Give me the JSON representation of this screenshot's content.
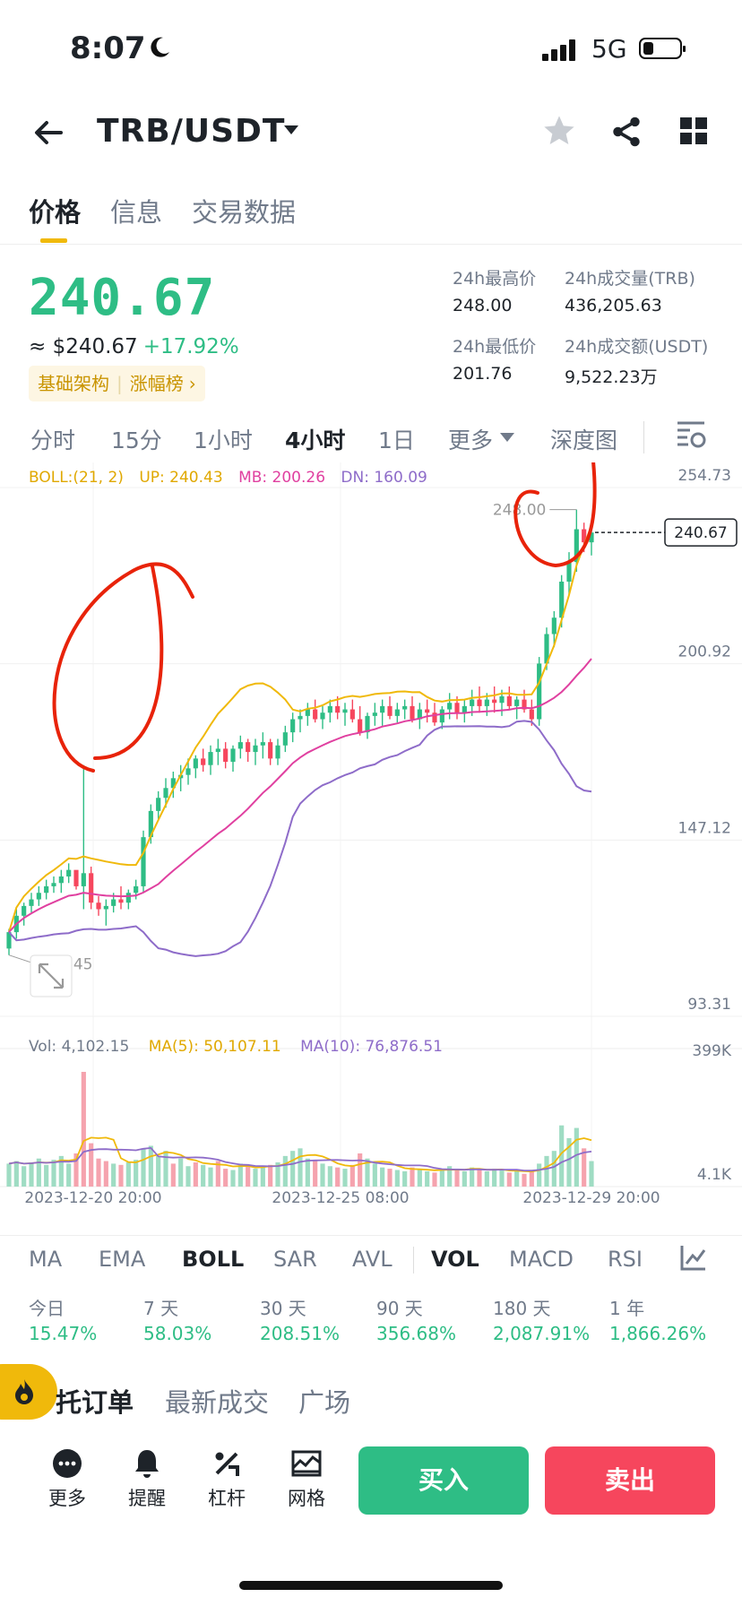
{
  "status": {
    "time": "8:07",
    "network": "5G"
  },
  "header": {
    "pair": "TRB/USDT"
  },
  "tabs": [
    "价格",
    "信息",
    "交易数据"
  ],
  "ticker": {
    "last_price": "240.67",
    "usd_price": "≈ $240.67",
    "change": "+17.92%",
    "tags": [
      "基础架构",
      "涨幅榜"
    ],
    "high_label": "24h最高价",
    "high": "248.00",
    "low_label": "24h最低价",
    "low": "201.76",
    "vol_label": "24h成交量(TRB)",
    "vol": "436,205.63",
    "amount_label": "24h成交额(USDT)",
    "amount": "9,522.23万"
  },
  "intervals": [
    "分时",
    "15分",
    "1小时",
    "4小时",
    "1日",
    "更多",
    "深度图"
  ],
  "overlay": {
    "boll": "BOLL:(21, 2)",
    "up": "UP: 240.43",
    "mb": "MB: 200.26",
    "dn": "DN: 160.09"
  },
  "volume_legend": {
    "vol": "Vol: 4,102.15",
    "ma5": "MA(5): 50,107.11",
    "ma10": "MA(10): 76,876.51"
  },
  "indicator_tabs": [
    "MA",
    "EMA",
    "BOLL",
    "SAR",
    "AVL",
    "VOL",
    "MACD",
    "RSI"
  ],
  "performance": [
    {
      "period": "今日",
      "value": "15.47%"
    },
    {
      "period": "7 天",
      "value": "58.03%"
    },
    {
      "period": "30 天",
      "value": "208.51%"
    },
    {
      "period": "90 天",
      "value": "356.68%"
    },
    {
      "period": "180 天",
      "value": "2,087.91%"
    },
    {
      "period": "1 年",
      "value": "1,866.26%"
    }
  ],
  "bottom_tabs": [
    "托订单",
    "最新成交",
    "广场"
  ],
  "actions": [
    "更多",
    "提醒",
    "杠杆",
    "网格"
  ],
  "buy_label": "买入",
  "sell_label": "卖出",
  "colors": {
    "up": "#2ebd85",
    "down": "#f6465d",
    "accent": "#f0b90b",
    "ma_mid": "#e040a0",
    "boll_dn": "#8e6cc9"
  },
  "chart_data": {
    "type": "candlestick",
    "y_ticks": [
      "254.73",
      "200.92",
      "147.12",
      "93.31"
    ],
    "y_range": [
      93.31,
      254.73
    ],
    "x_labels": [
      "2023-12-20 20:00",
      "2023-12-25 08:00",
      "2023-12-29 20:00"
    ],
    "last_price_label": "240.67",
    "max_label": "248.00",
    "min_label": "113.45",
    "volume_ticks": [
      "399K",
      "4.1K"
    ],
    "candles": [
      [
        114,
        120,
        112,
        119
      ],
      [
        119,
        126,
        117,
        124
      ],
      [
        124,
        128,
        121,
        127
      ],
      [
        127,
        131,
        125,
        129
      ],
      [
        129,
        133,
        127,
        131
      ],
      [
        131,
        135,
        129,
        133
      ],
      [
        133,
        136,
        131,
        134
      ],
      [
        134,
        138,
        131,
        136
      ],
      [
        136,
        140,
        134,
        138
      ],
      [
        138,
        137,
        132,
        133
      ],
      [
        133,
        170,
        126,
        137
      ],
      [
        137,
        139,
        126,
        128
      ],
      [
        128,
        130,
        124,
        126
      ],
      [
        126,
        129,
        121,
        127
      ],
      [
        127,
        131,
        125,
        129
      ],
      [
        129,
        133,
        126,
        128
      ],
      [
        128,
        132,
        126,
        131
      ],
      [
        131,
        135,
        129,
        133
      ],
      [
        133,
        150,
        131,
        148
      ],
      [
        148,
        158,
        146,
        156
      ],
      [
        156,
        162,
        153,
        160
      ],
      [
        160,
        166,
        157,
        163
      ],
      [
        163,
        168,
        160,
        166
      ],
      [
        166,
        170,
        162,
        167
      ],
      [
        167,
        172,
        164,
        169
      ],
      [
        169,
        173,
        166,
        172
      ],
      [
        172,
        175,
        168,
        170
      ],
      [
        170,
        176,
        167,
        174
      ],
      [
        174,
        178,
        170,
        175
      ],
      [
        175,
        177,
        169,
        171
      ],
      [
        171,
        176,
        168,
        175
      ],
      [
        175,
        179,
        172,
        177
      ],
      [
        177,
        178,
        171,
        174
      ],
      [
        174,
        178,
        170,
        176
      ],
      [
        176,
        180,
        172,
        177
      ],
      [
        177,
        178,
        170,
        172
      ],
      [
        172,
        178,
        170,
        176
      ],
      [
        176,
        182,
        174,
        180
      ],
      [
        180,
        186,
        177,
        184
      ],
      [
        184,
        187,
        180,
        185
      ],
      [
        185,
        189,
        182,
        187
      ],
      [
        187,
        190,
        183,
        184
      ],
      [
        184,
        188,
        181,
        186
      ],
      [
        186,
        190,
        183,
        188
      ],
      [
        188,
        191,
        184,
        186
      ],
      [
        186,
        189,
        182,
        187
      ],
      [
        187,
        190,
        183,
        184
      ],
      [
        184,
        188,
        179,
        180
      ],
      [
        180,
        186,
        178,
        185
      ],
      [
        185,
        189,
        182,
        186
      ],
      [
        186,
        190,
        182,
        188
      ],
      [
        188,
        191,
        184,
        185
      ],
      [
        185,
        189,
        183,
        187
      ],
      [
        187,
        190,
        184,
        188
      ],
      [
        188,
        191,
        183,
        184
      ],
      [
        184,
        189,
        181,
        187
      ],
      [
        187,
        190,
        183,
        186
      ],
      [
        186,
        189,
        182,
        183
      ],
      [
        183,
        188,
        181,
        187
      ],
      [
        187,
        192,
        184,
        189
      ],
      [
        189,
        191,
        184,
        186
      ],
      [
        186,
        190,
        183,
        188
      ],
      [
        188,
        193,
        185,
        190
      ],
      [
        190,
        194,
        186,
        188
      ],
      [
        188,
        192,
        185,
        190
      ],
      [
        190,
        194,
        186,
        189
      ],
      [
        189,
        193,
        185,
        191
      ],
      [
        191,
        194,
        187,
        188
      ],
      [
        188,
        191,
        184,
        190
      ],
      [
        190,
        193,
        186,
        187
      ],
      [
        187,
        190,
        182,
        184
      ],
      [
        184,
        203,
        182,
        201
      ],
      [
        201,
        212,
        199,
        210
      ],
      [
        210,
        217,
        206,
        215
      ],
      [
        215,
        228,
        212,
        226
      ],
      [
        226,
        235,
        222,
        232
      ],
      [
        232,
        248,
        229,
        242
      ],
      [
        242,
        244,
        235,
        238
      ],
      [
        238,
        243,
        234,
        241
      ]
    ],
    "volume": [
      [
        18,
        1
      ],
      [
        20,
        1
      ],
      [
        16,
        1
      ],
      [
        19,
        1
      ],
      [
        22,
        1
      ],
      [
        17,
        1
      ],
      [
        21,
        1
      ],
      [
        24,
        1
      ],
      [
        18,
        1
      ],
      [
        26,
        0
      ],
      [
        90,
        0
      ],
      [
        34,
        0
      ],
      [
        22,
        0
      ],
      [
        20,
        0
      ],
      [
        18,
        1
      ],
      [
        17,
        0
      ],
      [
        19,
        1
      ],
      [
        21,
        1
      ],
      [
        30,
        1
      ],
      [
        32,
        1
      ],
      [
        24,
        1
      ],
      [
        28,
        1
      ],
      [
        18,
        0
      ],
      [
        22,
        1
      ],
      [
        16,
        1
      ],
      [
        19,
        0
      ],
      [
        17,
        1
      ],
      [
        15,
        1
      ],
      [
        20,
        0
      ],
      [
        14,
        0
      ],
      [
        13,
        1
      ],
      [
        18,
        1
      ],
      [
        16,
        0
      ],
      [
        14,
        1
      ],
      [
        15,
        1
      ],
      [
        17,
        0
      ],
      [
        19,
        1
      ],
      [
        24,
        1
      ],
      [
        28,
        1
      ],
      [
        30,
        1
      ],
      [
        22,
        1
      ],
      [
        20,
        0
      ],
      [
        18,
        1
      ],
      [
        16,
        1
      ],
      [
        15,
        0
      ],
      [
        14,
        1
      ],
      [
        17,
        0
      ],
      [
        26,
        0
      ],
      [
        22,
        1
      ],
      [
        18,
        1
      ],
      [
        15,
        1
      ],
      [
        14,
        0
      ],
      [
        13,
        1
      ],
      [
        12,
        1
      ],
      [
        15,
        0
      ],
      [
        14,
        1
      ],
      [
        12,
        1
      ],
      [
        11,
        0
      ],
      [
        13,
        1
      ],
      [
        16,
        1
      ],
      [
        14,
        0
      ],
      [
        12,
        1
      ],
      [
        15,
        1
      ],
      [
        13,
        0
      ],
      [
        12,
        1
      ],
      [
        14,
        1
      ],
      [
        13,
        1
      ],
      [
        11,
        0
      ],
      [
        12,
        1
      ],
      [
        10,
        0
      ],
      [
        13,
        0
      ],
      [
        18,
        1
      ],
      [
        24,
        1
      ],
      [
        28,
        1
      ],
      [
        48,
        1
      ],
      [
        38,
        1
      ],
      [
        46,
        1
      ],
      [
        30,
        0
      ],
      [
        20,
        1
      ]
    ]
  }
}
